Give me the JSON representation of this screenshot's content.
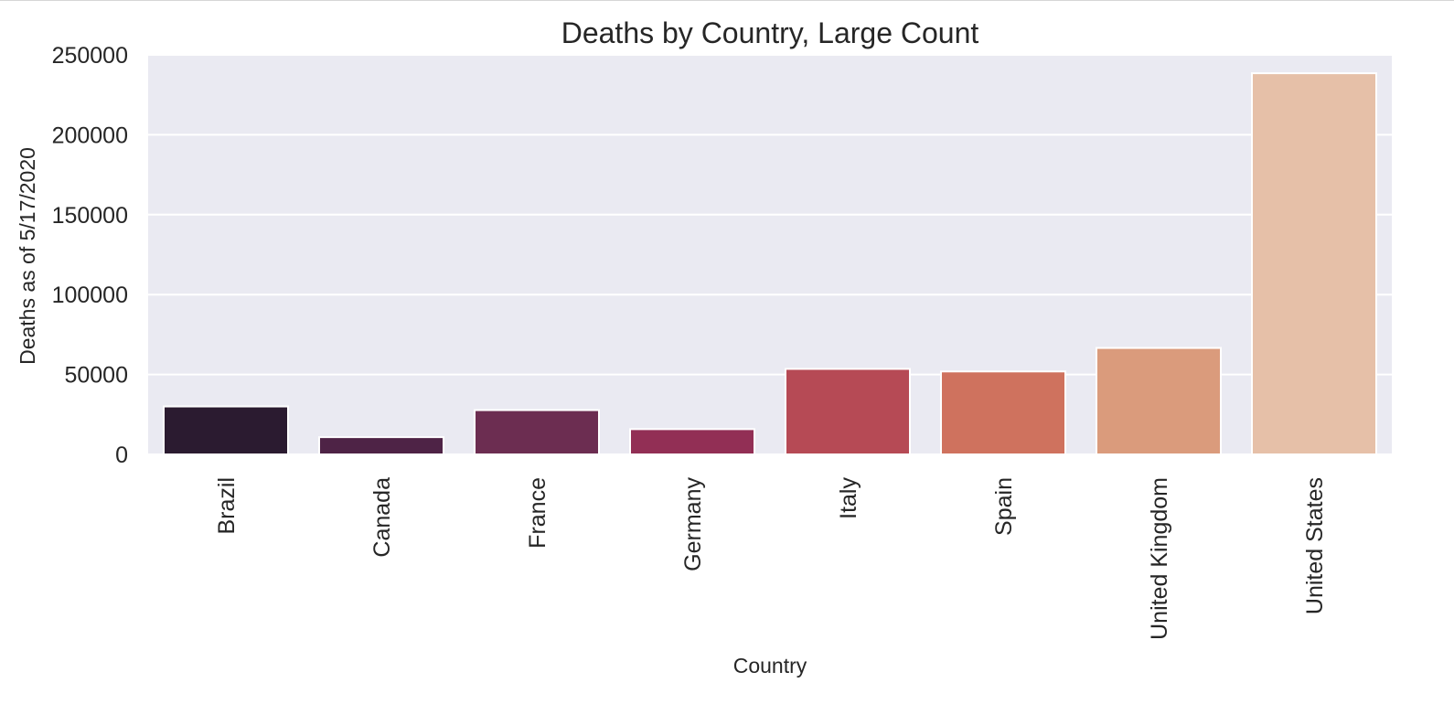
{
  "chart_data": {
    "type": "bar",
    "title": "Deaths by Country, Large Count",
    "xlabel": "Country",
    "ylabel": "Deaths as of 5/17/2020",
    "categories": [
      "Brazil",
      "Canada",
      "France",
      "Germany",
      "Italy",
      "Spain",
      "United Kingdom",
      "United States"
    ],
    "values": [
      30000,
      10800,
      27700,
      15800,
      53500,
      51900,
      66600,
      238500
    ],
    "ylim": [
      0,
      250000
    ],
    "yticks": [
      0,
      50000,
      100000,
      150000,
      200000,
      250000
    ],
    "grid": true,
    "legend": "none",
    "colors": [
      "#2b1b30",
      "#4e2346",
      "#6c2d51",
      "#922f55",
      "#b64a55",
      "#cf725e",
      "#da9b7c",
      "#e6c0a8"
    ],
    "background": "#eaeaf2",
    "gridline_color": "#ffffff"
  }
}
